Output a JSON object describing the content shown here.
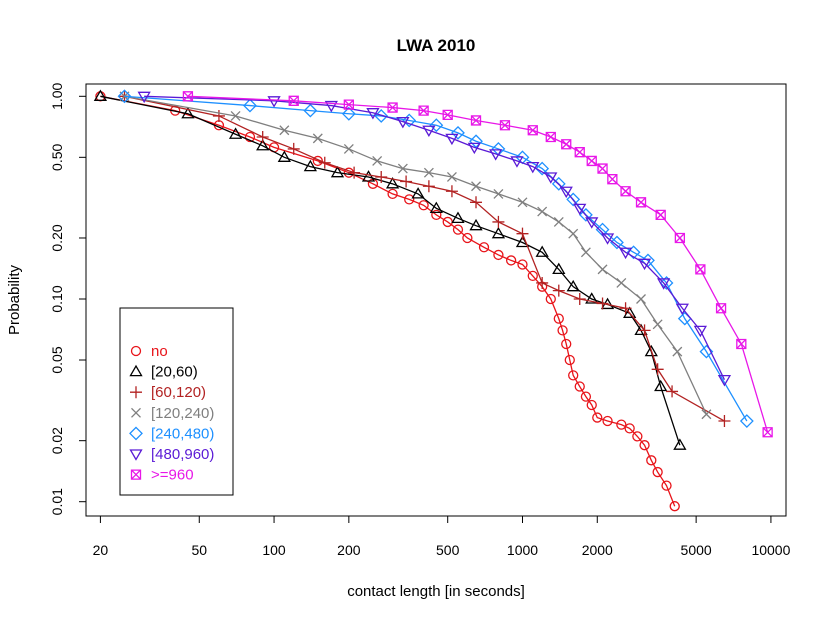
{
  "chart_data": {
    "type": "line",
    "title": "LWA 2010",
    "xlabel": "contact length [in seconds]",
    "ylabel": "Probability",
    "xscale": "log",
    "yscale": "log",
    "xlim": [
      17.5,
      11500
    ],
    "ylim": [
      0.0085,
      1.15
    ],
    "x_ticks": [
      20,
      50,
      100,
      200,
      500,
      1000,
      2000,
      5000,
      10000
    ],
    "x_tick_labels": [
      "20",
      "50",
      "100",
      "200",
      "500",
      "1000",
      "2000",
      "5000",
      "10000"
    ],
    "y_ticks": [
      0.01,
      0.02,
      0.05,
      0.1,
      0.2,
      0.5,
      1.0
    ],
    "y_tick_labels": [
      "0.01",
      "0.02",
      "0.05",
      "0.10",
      "0.20",
      "0.50",
      "1.00"
    ],
    "legend_position": "bottom-left",
    "series": [
      {
        "name": "no",
        "color": "#e8141a",
        "marker": "circle",
        "x": [
          20,
          40,
          60,
          80,
          100,
          150,
          200,
          250,
          300,
          350,
          400,
          450,
          500,
          550,
          600,
          700,
          800,
          900,
          1000,
          1100,
          1200,
          1300,
          1400,
          1450,
          1500,
          1550,
          1600,
          1700,
          1800,
          1900,
          2000,
          2200,
          2500,
          2700,
          2900,
          3100,
          3300,
          3500,
          3800,
          4100
        ],
        "y": [
          1.0,
          0.85,
          0.72,
          0.63,
          0.56,
          0.48,
          0.42,
          0.37,
          0.33,
          0.31,
          0.29,
          0.26,
          0.24,
          0.22,
          0.2,
          0.18,
          0.165,
          0.155,
          0.148,
          0.13,
          0.115,
          0.1,
          0.08,
          0.07,
          0.06,
          0.05,
          0.042,
          0.037,
          0.033,
          0.03,
          0.026,
          0.025,
          0.024,
          0.023,
          0.021,
          0.019,
          0.016,
          0.014,
          0.012,
          0.0095
        ]
      },
      {
        "name": "[20,60)",
        "color": "#000000",
        "marker": "triangle",
        "x": [
          20,
          45,
          70,
          90,
          110,
          140,
          180,
          240,
          300,
          380,
          450,
          550,
          650,
          800,
          1000,
          1200,
          1400,
          1600,
          1900,
          2200,
          2700,
          3000,
          3300,
          3600,
          4300
        ],
        "y": [
          1.0,
          0.82,
          0.65,
          0.57,
          0.5,
          0.45,
          0.42,
          0.4,
          0.37,
          0.33,
          0.28,
          0.25,
          0.23,
          0.21,
          0.19,
          0.17,
          0.14,
          0.115,
          0.1,
          0.094,
          0.085,
          0.07,
          0.055,
          0.037,
          0.019
        ]
      },
      {
        "name": "[60,120)",
        "color": "#b22222",
        "marker": "plus",
        "x": [
          25,
          60,
          90,
          120,
          160,
          210,
          270,
          340,
          420,
          520,
          650,
          800,
          1000,
          1200,
          1400,
          1700,
          2100,
          2600,
          3100,
          3500,
          4000,
          6500
        ],
        "y": [
          1.0,
          0.8,
          0.63,
          0.55,
          0.47,
          0.42,
          0.4,
          0.38,
          0.36,
          0.34,
          0.3,
          0.24,
          0.21,
          0.12,
          0.11,
          0.1,
          0.095,
          0.09,
          0.07,
          0.045,
          0.035,
          0.025
        ]
      },
      {
        "name": "[120,240)",
        "color": "#7f7f7f",
        "marker": "cross",
        "x": [
          25,
          70,
          110,
          150,
          200,
          260,
          330,
          420,
          520,
          650,
          800,
          1000,
          1200,
          1400,
          1600,
          1800,
          2100,
          2500,
          3000,
          3500,
          4200,
          5500
        ],
        "y": [
          1.0,
          0.8,
          0.68,
          0.62,
          0.55,
          0.48,
          0.44,
          0.42,
          0.4,
          0.36,
          0.33,
          0.3,
          0.27,
          0.24,
          0.21,
          0.17,
          0.14,
          0.12,
          0.1,
          0.075,
          0.055,
          0.027
        ]
      },
      {
        "name": "[240,480)",
        "color": "#1e90ff",
        "marker": "diamond",
        "x": [
          25,
          80,
          140,
          200,
          270,
          350,
          450,
          550,
          650,
          800,
          1000,
          1200,
          1400,
          1600,
          1800,
          2100,
          2400,
          2800,
          3200,
          3800,
          4500,
          5500,
          8000
        ],
        "y": [
          1.0,
          0.9,
          0.85,
          0.82,
          0.8,
          0.76,
          0.72,
          0.66,
          0.6,
          0.55,
          0.5,
          0.44,
          0.37,
          0.31,
          0.26,
          0.22,
          0.19,
          0.17,
          0.155,
          0.12,
          0.08,
          0.055,
          0.025
        ]
      },
      {
        "name": "[480,960)",
        "color": "#5a1ad6",
        "marker": "triangle-down",
        "x": [
          30,
          100,
          170,
          250,
          330,
          420,
          520,
          640,
          780,
          950,
          1100,
          1300,
          1500,
          1700,
          1900,
          2200,
          2600,
          3100,
          3700,
          4400,
          5200,
          6500
        ],
        "y": [
          1.0,
          0.95,
          0.9,
          0.83,
          0.75,
          0.68,
          0.62,
          0.56,
          0.52,
          0.48,
          0.45,
          0.4,
          0.34,
          0.28,
          0.24,
          0.2,
          0.17,
          0.15,
          0.12,
          0.09,
          0.07,
          0.04
        ]
      },
      {
        "name": ">=960",
        "color": "#e817e8",
        "marker": "boxed-x",
        "x": [
          45,
          120,
          200,
          300,
          400,
          500,
          650,
          850,
          1100,
          1300,
          1500,
          1700,
          1900,
          2100,
          2300,
          2600,
          3000,
          3600,
          4300,
          5200,
          6300,
          7600,
          9700
        ],
        "y": [
          1.0,
          0.95,
          0.91,
          0.88,
          0.85,
          0.81,
          0.76,
          0.72,
          0.68,
          0.63,
          0.58,
          0.53,
          0.48,
          0.44,
          0.39,
          0.34,
          0.3,
          0.26,
          0.2,
          0.14,
          0.09,
          0.06,
          0.022
        ]
      }
    ]
  }
}
